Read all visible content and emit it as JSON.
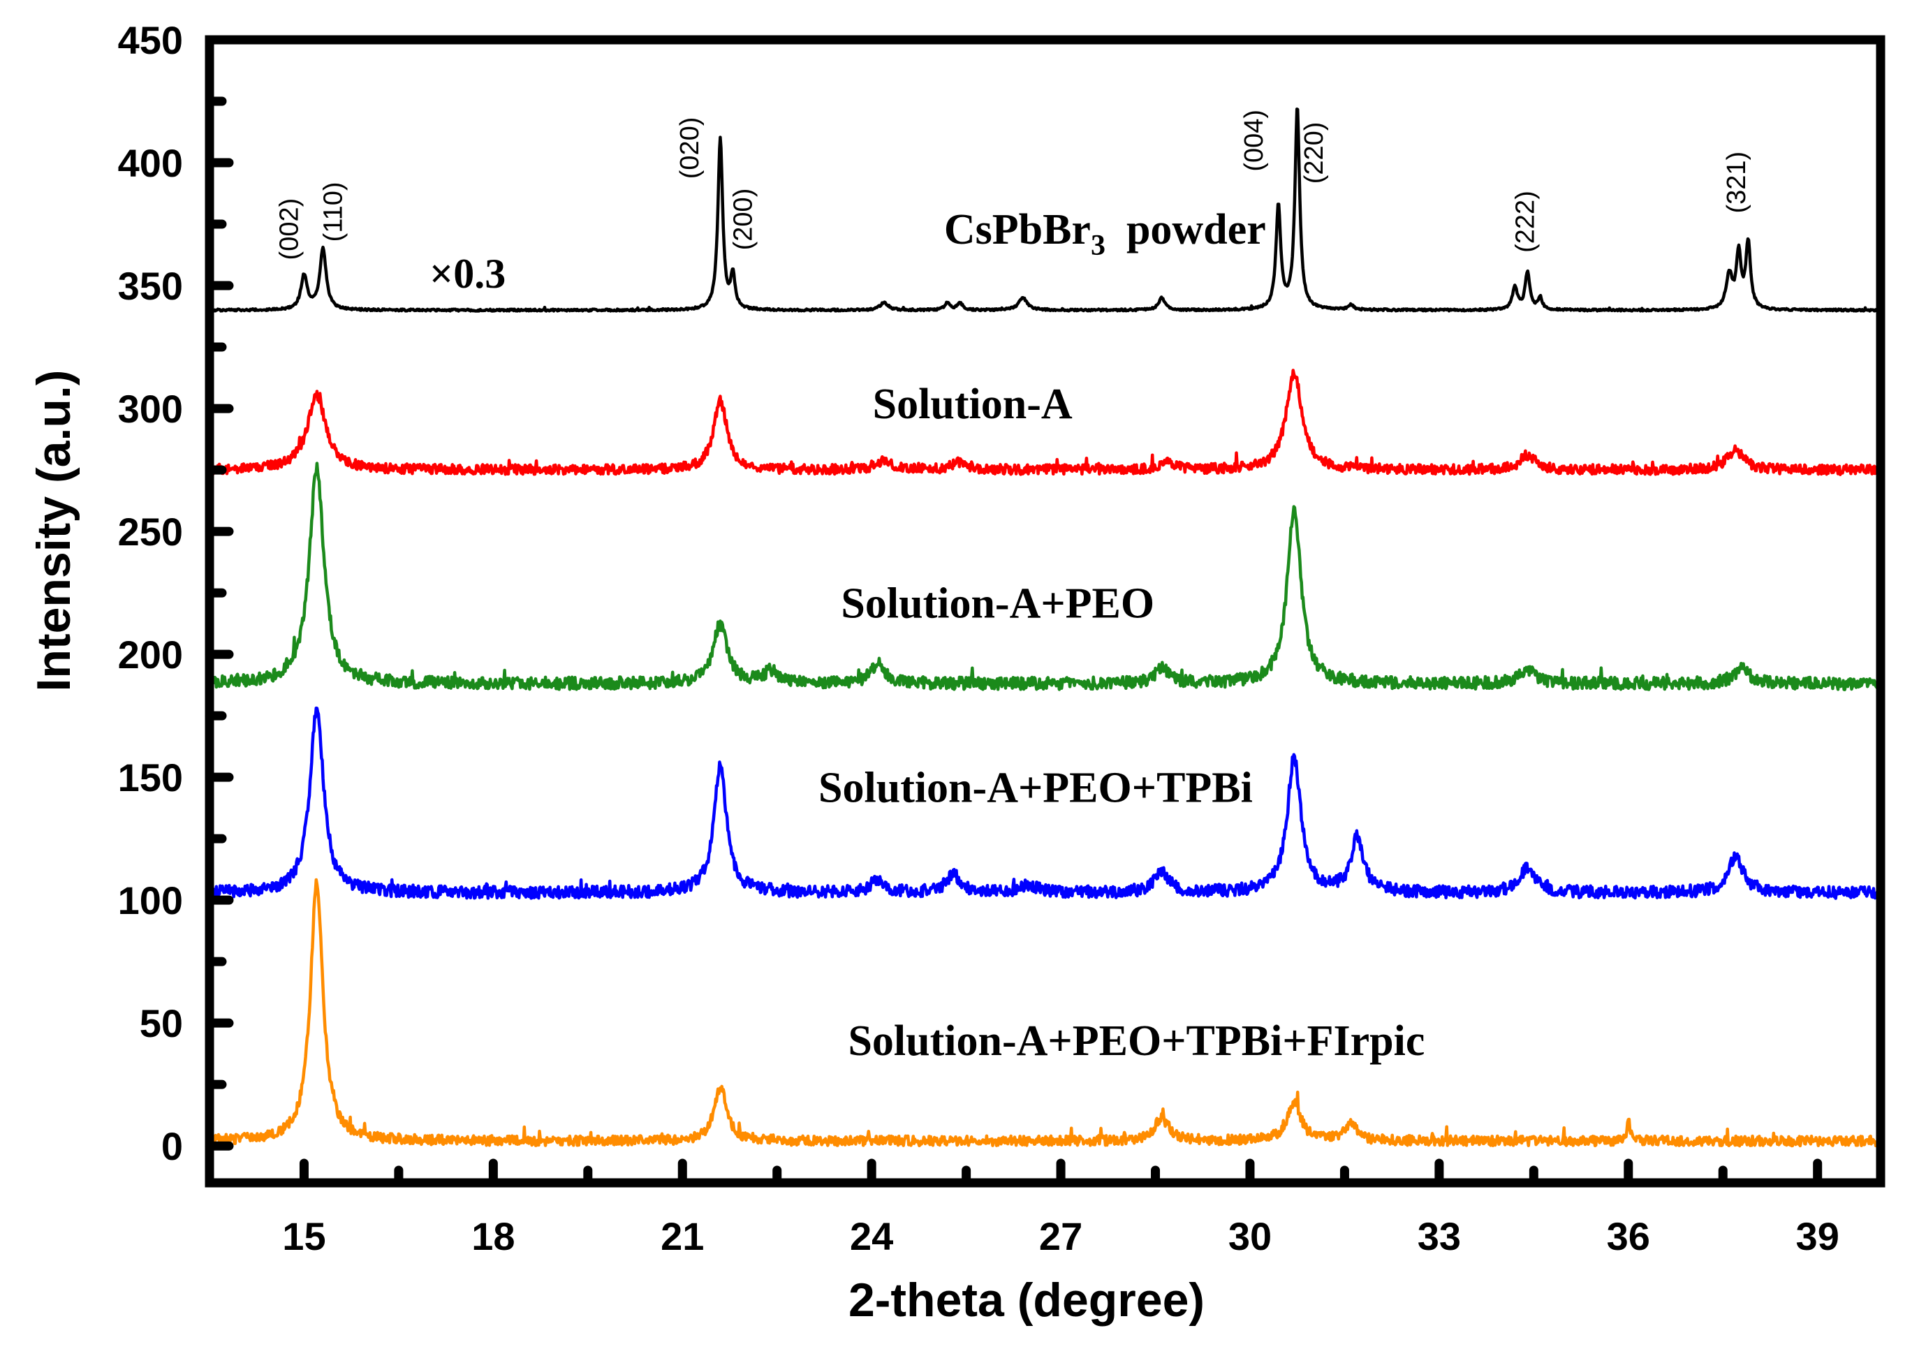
{
  "chart_data": {
    "type": "line",
    "xlabel": "2-theta (degree)",
    "ylabel": "Intensity (a.u.)",
    "xlim": [
      13.5,
      40.0
    ],
    "ylim": [
      -15,
      450
    ],
    "x_ticks": [
      15,
      18,
      21,
      24,
      27,
      30,
      33,
      36,
      39
    ],
    "x_tick_labels": [
      "15",
      "18",
      "21",
      "24",
      "27",
      "30",
      "33",
      "36",
      "39"
    ],
    "y_ticks": [
      0,
      50,
      100,
      150,
      200,
      250,
      300,
      350,
      400,
      450
    ],
    "y_tick_labels": [
      "0",
      "50",
      "100",
      "150",
      "200",
      "250",
      "300",
      "350",
      "400",
      "450"
    ],
    "scale_note": "×0.3",
    "series": [
      {
        "name": "CsPbBr3 powder",
        "label_main": "CsPbBr",
        "label_sub": "3",
        "label_tail": "powder",
        "label_x": 27.7,
        "label_y": 367,
        "color": "#000000",
        "baseline": 340,
        "noise": 0.4,
        "seed": 1,
        "peaks": [
          [
            15.0,
            14,
            0.06
          ],
          [
            15.3,
            25,
            0.06
          ],
          [
            21.6,
            70,
            0.045
          ],
          [
            21.8,
            14,
            0.04
          ],
          [
            24.2,
            3,
            0.08
          ],
          [
            25.2,
            3,
            0.05
          ],
          [
            25.4,
            3,
            0.05
          ],
          [
            26.4,
            5,
            0.08
          ],
          [
            28.6,
            5,
            0.06
          ],
          [
            30.45,
            42,
            0.045
          ],
          [
            30.75,
            82,
            0.045
          ],
          [
            31.6,
            2,
            0.05
          ],
          [
            34.2,
            9,
            0.05
          ],
          [
            34.4,
            15,
            0.045
          ],
          [
            34.6,
            5,
            0.04
          ],
          [
            37.6,
            14,
            0.06
          ],
          [
            37.75,
            22,
            0.045
          ],
          [
            37.9,
            27,
            0.045
          ]
        ]
      },
      {
        "name": "Solution-A",
        "label_main": "Solution-A",
        "label_x": 25.6,
        "label_y": 296,
        "color": "#ff0000",
        "baseline": 275,
        "noise": 2.0,
        "seed": 2,
        "peaks": [
          [
            15.2,
            30,
            0.18
          ],
          [
            21.6,
            28,
            0.13
          ],
          [
            24.2,
            4,
            0.15
          ],
          [
            25.4,
            3,
            0.15
          ],
          [
            28.7,
            3,
            0.15
          ],
          [
            30.7,
            40,
            0.15
          ],
          [
            34.4,
            6,
            0.14
          ],
          [
            37.7,
            8,
            0.16
          ]
        ]
      },
      {
        "name": "Solution-A+PEO",
        "label_main": "Solution-A+PEO",
        "label_x": 26.0,
        "label_y": 215,
        "color": "#1b8a1b",
        "baseline": 188,
        "noise": 2.5,
        "seed": 3,
        "peaks": [
          [
            15.2,
            88,
            0.14
          ],
          [
            21.6,
            24,
            0.14
          ],
          [
            22.4,
            5,
            0.12
          ],
          [
            24.1,
            8,
            0.14
          ],
          [
            28.6,
            6,
            0.14
          ],
          [
            30.7,
            72,
            0.13
          ],
          [
            34.4,
            6,
            0.16
          ],
          [
            37.8,
            6,
            0.16
          ]
        ]
      },
      {
        "name": "Solution-A+PEO+TPBi",
        "label_main": "Solution-A+PEO+TPBi",
        "label_x": 26.6,
        "label_y": 140,
        "color": "#0000ff",
        "baseline": 103,
        "noise": 2.5,
        "seed": 4,
        "peaks": [
          [
            15.2,
            75,
            0.13
          ],
          [
            21.6,
            52,
            0.12
          ],
          [
            24.1,
            5,
            0.14
          ],
          [
            25.3,
            7,
            0.14
          ],
          [
            26.5,
            3,
            0.14
          ],
          [
            28.6,
            8,
            0.14
          ],
          [
            30.7,
            55,
            0.13
          ],
          [
            31.7,
            22,
            0.12
          ],
          [
            34.4,
            10,
            0.15
          ],
          [
            37.7,
            14,
            0.15
          ]
        ]
      },
      {
        "name": "Solution-A+PEO+TPBi+FIrpic",
        "label_main": "Solution-A+PEO+TPBi+FIrpic",
        "label_x": 28.2,
        "label_y": 37,
        "color": "#ff8c00",
        "baseline": 2,
        "noise": 2.0,
        "seed": 5,
        "peaks": [
          [
            15.2,
            105,
            0.12
          ],
          [
            21.6,
            22,
            0.12
          ],
          [
            28.6,
            9,
            0.15
          ],
          [
            30.7,
            16,
            0.13
          ],
          [
            31.6,
            7,
            0.12
          ],
          [
            36.0,
            8,
            0.03
          ]
        ]
      }
    ],
    "annotations": [
      {
        "text": "(002)",
        "x": 14.9,
        "y": 373
      },
      {
        "text": "(110)",
        "x": 15.6,
        "y": 380
      },
      {
        "text": "(020)",
        "x": 21.25,
        "y": 406
      },
      {
        "text": "(200)",
        "x": 22.1,
        "y": 377
      },
      {
        "text": "(004)",
        "x": 30.2,
        "y": 409
      },
      {
        "text": "(220)",
        "x": 31.15,
        "y": 404
      },
      {
        "text": "(222)",
        "x": 34.5,
        "y": 376
      },
      {
        "text": "(321)",
        "x": 37.85,
        "y": 392
      }
    ]
  }
}
